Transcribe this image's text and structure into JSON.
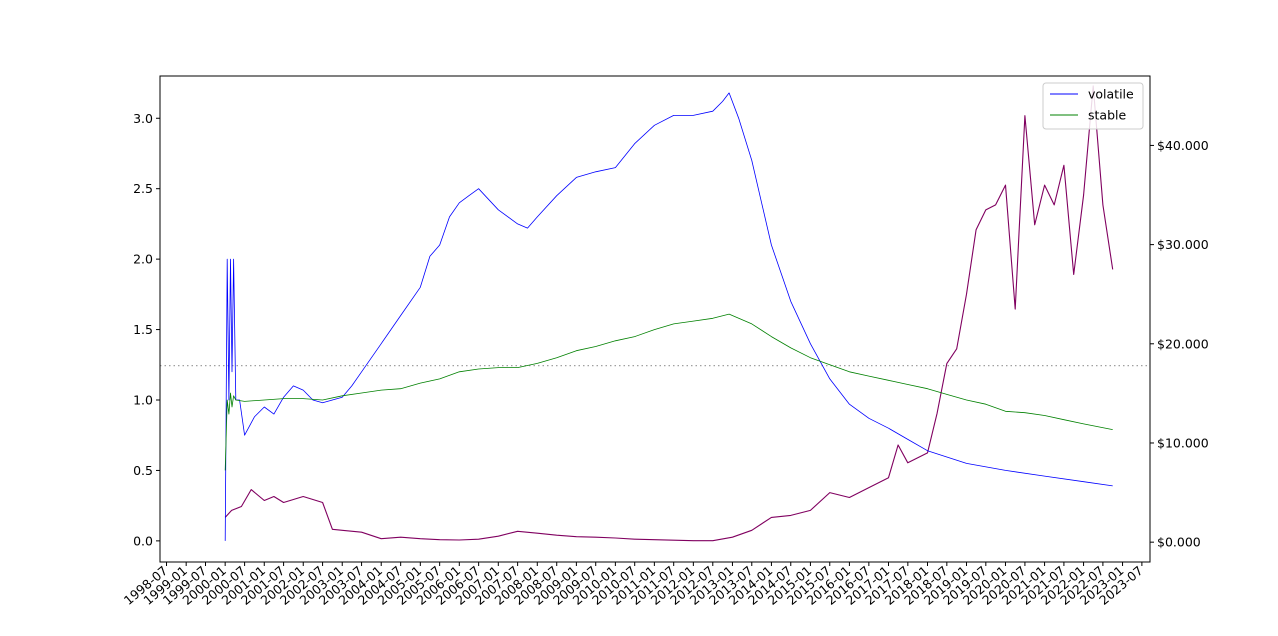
{
  "chart_data": {
    "type": "line",
    "title": "",
    "xlabel": "",
    "ylabel": "",
    "ylabel_right": "",
    "x_range": [
      "1998-05-01",
      "2023-09-15"
    ],
    "ylim": [
      -0.15,
      3.3
    ],
    "ylim_right": [
      -2000,
      47000
    ],
    "x_ticks": [
      "1998-07",
      "1999-01",
      "1999-07",
      "2000-01",
      "2000-07",
      "2001-01",
      "2001-07",
      "2002-01",
      "2002-07",
      "2003-01",
      "2003-07",
      "2004-01",
      "2004-07",
      "2005-01",
      "2005-07",
      "2006-01",
      "2006-07",
      "2007-01",
      "2007-07",
      "2008-01",
      "2008-07",
      "2009-01",
      "2009-07",
      "2010-01",
      "2010-07",
      "2011-01",
      "2011-07",
      "2012-01",
      "2012-07",
      "2013-01",
      "2013-07",
      "2014-01",
      "2014-07",
      "2015-01",
      "2015-07",
      "2016-01",
      "2016-07",
      "2017-01",
      "2017-07",
      "2018-01",
      "2018-07",
      "2019-01",
      "2019-07",
      "2020-01",
      "2020-07",
      "2021-01",
      "2021-07",
      "2022-01",
      "2022-07",
      "2023-01",
      "2023-07"
    ],
    "y_ticks_left": [
      {
        "value": 0.0,
        "label": "0.0"
      },
      {
        "value": 0.5,
        "label": "0.5"
      },
      {
        "value": 1.0,
        "label": "1.0"
      },
      {
        "value": 1.5,
        "label": "1.5"
      },
      {
        "value": 2.0,
        "label": "2.0"
      },
      {
        "value": 2.5,
        "label": "2.5"
      },
      {
        "value": 3.0,
        "label": "3.0"
      }
    ],
    "y_ticks_right": [
      {
        "value": 0,
        "label": "$0.000"
      },
      {
        "value": 10000,
        "label": "$10.000"
      },
      {
        "value": 20000,
        "label": "$20.000"
      },
      {
        "value": 30000,
        "label": "$30.000"
      },
      {
        "value": 40000,
        "label": "$40.000"
      }
    ],
    "reference_line": {
      "axis": "right",
      "value": 17800,
      "style": "dotted",
      "color": "#a0a0a0"
    },
    "legend": {
      "position": "top-right",
      "entries": [
        "volatile",
        "stable"
      ]
    },
    "series": [
      {
        "name": "volatile",
        "axis": "left",
        "color": "#0000ff",
        "points": [
          [
            "2000-01-01",
            0.0
          ],
          [
            "2000-01-20",
            2.0
          ],
          [
            "2000-02-05",
            1.0
          ],
          [
            "2000-02-20",
            2.0
          ],
          [
            "2000-03-05",
            1.2
          ],
          [
            "2000-03-20",
            2.0
          ],
          [
            "2000-04-10",
            1.0
          ],
          [
            "2000-05-15",
            1.0
          ],
          [
            "2000-07-01",
            0.75
          ],
          [
            "2000-10-01",
            0.88
          ],
          [
            "2001-01-01",
            0.95
          ],
          [
            "2001-04-01",
            0.9
          ],
          [
            "2001-07-01",
            1.02
          ],
          [
            "2001-10-01",
            1.1
          ],
          [
            "2002-01-01",
            1.07
          ],
          [
            "2002-04-01",
            1.0
          ],
          [
            "2002-07-01",
            0.98
          ],
          [
            "2003-01-01",
            1.02
          ],
          [
            "2003-04-01",
            1.1
          ],
          [
            "2003-07-01",
            1.2
          ],
          [
            "2004-01-01",
            1.4
          ],
          [
            "2004-07-01",
            1.6
          ],
          [
            "2005-01-01",
            1.8
          ],
          [
            "2005-04-01",
            2.02
          ],
          [
            "2005-07-01",
            2.1
          ],
          [
            "2005-10-01",
            2.3
          ],
          [
            "2006-01-01",
            2.4
          ],
          [
            "2006-04-01",
            2.45
          ],
          [
            "2006-07-01",
            2.5
          ],
          [
            "2007-01-01",
            2.35
          ],
          [
            "2007-07-01",
            2.25
          ],
          [
            "2007-10-01",
            2.22
          ],
          [
            "2008-01-01",
            2.3
          ],
          [
            "2008-07-01",
            2.45
          ],
          [
            "2009-01-01",
            2.58
          ],
          [
            "2009-07-01",
            2.62
          ],
          [
            "2010-01-01",
            2.65
          ],
          [
            "2010-07-01",
            2.82
          ],
          [
            "2011-01-01",
            2.95
          ],
          [
            "2011-07-01",
            3.02
          ],
          [
            "2012-01-01",
            3.02
          ],
          [
            "2012-07-01",
            3.05
          ],
          [
            "2012-10-01",
            3.12
          ],
          [
            "2012-12-01",
            3.18
          ],
          [
            "2013-03-01",
            3.0
          ],
          [
            "2013-07-01",
            2.7
          ],
          [
            "2013-10-01",
            2.4
          ],
          [
            "2014-01-01",
            2.1
          ],
          [
            "2014-07-01",
            1.7
          ],
          [
            "2015-01-01",
            1.4
          ],
          [
            "2015-07-01",
            1.15
          ],
          [
            "2016-01-01",
            0.97
          ],
          [
            "2016-07-01",
            0.87
          ],
          [
            "2017-01-01",
            0.8
          ],
          [
            "2017-07-01",
            0.72
          ],
          [
            "2018-01-01",
            0.64
          ],
          [
            "2019-01-01",
            0.55
          ],
          [
            "2020-01-01",
            0.5
          ],
          [
            "2021-01-01",
            0.46
          ],
          [
            "2022-01-01",
            0.42
          ],
          [
            "2022-10-01",
            0.39
          ]
        ]
      },
      {
        "name": "stable",
        "axis": "left",
        "color": "#008000",
        "points": [
          [
            "2000-01-01",
            0.5
          ],
          [
            "2000-01-20",
            1.0
          ],
          [
            "2000-02-05",
            0.9
          ],
          [
            "2000-02-20",
            1.05
          ],
          [
            "2000-03-05",
            0.95
          ],
          [
            "2000-03-20",
            1.03
          ],
          [
            "2000-04-10",
            1.0
          ],
          [
            "2000-07-01",
            0.99
          ],
          [
            "2001-01-01",
            1.0
          ],
          [
            "2001-07-01",
            1.01
          ],
          [
            "2002-01-01",
            1.01
          ],
          [
            "2002-07-01",
            1.0
          ],
          [
            "2003-01-01",
            1.03
          ],
          [
            "2003-07-01",
            1.05
          ],
          [
            "2004-01-01",
            1.07
          ],
          [
            "2004-07-01",
            1.08
          ],
          [
            "2005-01-01",
            1.12
          ],
          [
            "2005-07-01",
            1.15
          ],
          [
            "2006-01-01",
            1.2
          ],
          [
            "2006-07-01",
            1.22
          ],
          [
            "2007-01-01",
            1.23
          ],
          [
            "2007-07-01",
            1.23
          ],
          [
            "2008-01-01",
            1.26
          ],
          [
            "2008-07-01",
            1.3
          ],
          [
            "2009-01-01",
            1.35
          ],
          [
            "2009-07-01",
            1.38
          ],
          [
            "2010-01-01",
            1.42
          ],
          [
            "2010-07-01",
            1.45
          ],
          [
            "2011-01-01",
            1.5
          ],
          [
            "2011-07-01",
            1.54
          ],
          [
            "2012-01-01",
            1.56
          ],
          [
            "2012-07-01",
            1.58
          ],
          [
            "2012-12-01",
            1.61
          ],
          [
            "2013-07-01",
            1.54
          ],
          [
            "2014-01-01",
            1.45
          ],
          [
            "2014-07-01",
            1.37
          ],
          [
            "2015-01-01",
            1.3
          ],
          [
            "2015-07-01",
            1.25
          ],
          [
            "2016-01-01",
            1.2
          ],
          [
            "2016-07-01",
            1.17
          ],
          [
            "2017-01-01",
            1.14
          ],
          [
            "2017-07-01",
            1.11
          ],
          [
            "2018-01-01",
            1.08
          ],
          [
            "2018-07-01",
            1.04
          ],
          [
            "2019-01-01",
            1.0
          ],
          [
            "2019-07-01",
            0.97
          ],
          [
            "2020-01-01",
            0.92
          ],
          [
            "2020-07-01",
            0.91
          ],
          [
            "2021-01-01",
            0.89
          ],
          [
            "2021-07-01",
            0.86
          ],
          [
            "2022-01-01",
            0.83
          ],
          [
            "2022-10-01",
            0.79
          ]
        ]
      },
      {
        "name": "",
        "axis": "right",
        "color": "#800060",
        "points": [
          [
            "2000-01-01",
            2500
          ],
          [
            "2000-03-01",
            3200
          ],
          [
            "2000-06-01",
            3600
          ],
          [
            "2000-09-01",
            5300
          ],
          [
            "2001-01-01",
            4200
          ],
          [
            "2001-04-01",
            4600
          ],
          [
            "2001-07-01",
            4000
          ],
          [
            "2002-01-01",
            4600
          ],
          [
            "2002-04-01",
            4300
          ],
          [
            "2002-07-01",
            4000
          ],
          [
            "2002-10-01",
            1300
          ],
          [
            "2003-01-01",
            1200
          ],
          [
            "2003-07-01",
            1000
          ],
          [
            "2004-01-01",
            350
          ],
          [
            "2004-07-01",
            500
          ],
          [
            "2005-01-01",
            350
          ],
          [
            "2005-07-01",
            250
          ],
          [
            "2006-01-01",
            220
          ],
          [
            "2006-07-01",
            300
          ],
          [
            "2007-01-01",
            600
          ],
          [
            "2007-07-01",
            1100
          ],
          [
            "2008-01-01",
            900
          ],
          [
            "2008-07-01",
            700
          ],
          [
            "2009-01-01",
            550
          ],
          [
            "2009-07-01",
            500
          ],
          [
            "2010-01-01",
            420
          ],
          [
            "2010-07-01",
            300
          ],
          [
            "2011-01-01",
            250
          ],
          [
            "2011-07-01",
            200
          ],
          [
            "2012-01-01",
            150
          ],
          [
            "2012-07-01",
            150
          ],
          [
            "2013-01-01",
            500
          ],
          [
            "2013-07-01",
            1200
          ],
          [
            "2014-01-01",
            2500
          ],
          [
            "2014-07-01",
            2700
          ],
          [
            "2015-01-01",
            3200
          ],
          [
            "2015-07-01",
            5000
          ],
          [
            "2016-01-01",
            4500
          ],
          [
            "2016-07-01",
            5500
          ],
          [
            "2017-01-01",
            6500
          ],
          [
            "2017-04-01",
            9800
          ],
          [
            "2017-07-01",
            8000
          ],
          [
            "2018-01-01",
            9000
          ],
          [
            "2018-04-01",
            13000
          ],
          [
            "2018-07-01",
            18000
          ],
          [
            "2018-10-01",
            19500
          ],
          [
            "2019-01-01",
            25000
          ],
          [
            "2019-04-01",
            31500
          ],
          [
            "2019-07-01",
            33500
          ],
          [
            "2019-10-01",
            34000
          ],
          [
            "2020-01-01",
            36000
          ],
          [
            "2020-04-01",
            23500
          ],
          [
            "2020-07-01",
            43000
          ],
          [
            "2020-10-01",
            32000
          ],
          [
            "2021-01-01",
            36000
          ],
          [
            "2021-04-01",
            34000
          ],
          [
            "2021-07-01",
            38000
          ],
          [
            "2021-10-01",
            27000
          ],
          [
            "2022-01-01",
            35000
          ],
          [
            "2022-04-01",
            46000
          ],
          [
            "2022-07-01",
            34000
          ],
          [
            "2022-10-01",
            27500
          ]
        ]
      }
    ]
  }
}
